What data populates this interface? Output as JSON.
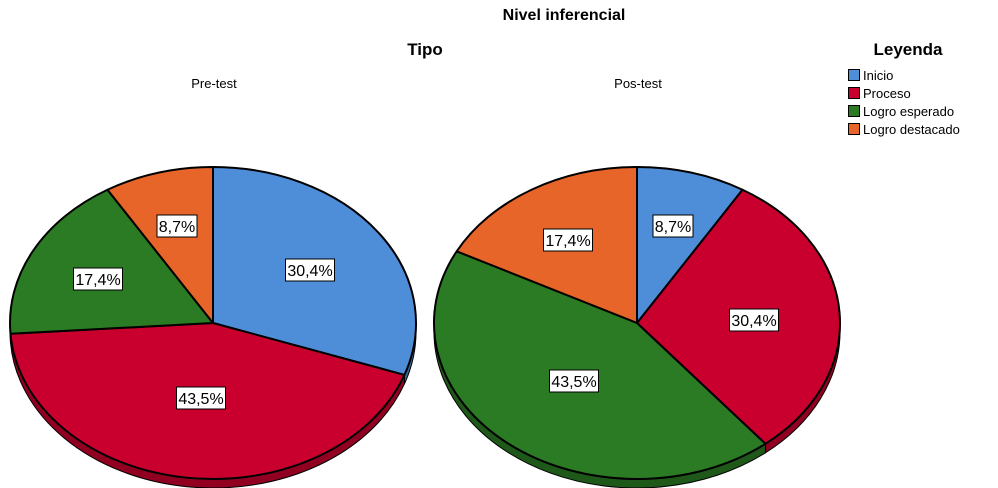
{
  "chart_data": {
    "type": "pie",
    "title": "Nivel inferencial",
    "facet_title": "Tipo",
    "legend": {
      "title": "Leyenda",
      "placement": "right",
      "entries": [
        {
          "label": "Inicio",
          "color": "#4e8dd8"
        },
        {
          "label": "Proceso",
          "color": "#c9002e"
        },
        {
          "label": "Logro esperado",
          "color": "#2a7b23"
        },
        {
          "label": "Logro destacado",
          "color": "#e8652a"
        }
      ]
    },
    "panels": [
      {
        "label": "Pre-test",
        "slices": [
          {
            "category": "Inicio",
            "value": 30.4,
            "label": "30,4%"
          },
          {
            "category": "Proceso",
            "value": 43.5,
            "label": "43,5%"
          },
          {
            "category": "Logro esperado",
            "value": 17.4,
            "label": "17,4%"
          },
          {
            "category": "Logro destacado",
            "value": 8.7,
            "label": "8,7%"
          }
        ]
      },
      {
        "label": "Pos-test",
        "slices": [
          {
            "category": "Inicio",
            "value": 8.7,
            "label": "8,7%"
          },
          {
            "category": "Proceso",
            "value": 30.4,
            "label": "30,4%"
          },
          {
            "category": "Logro esperado",
            "value": 43.5,
            "label": "43,5%"
          },
          {
            "category": "Logro destacado",
            "value": 17.4,
            "label": "17,4%"
          }
        ]
      }
    ]
  }
}
